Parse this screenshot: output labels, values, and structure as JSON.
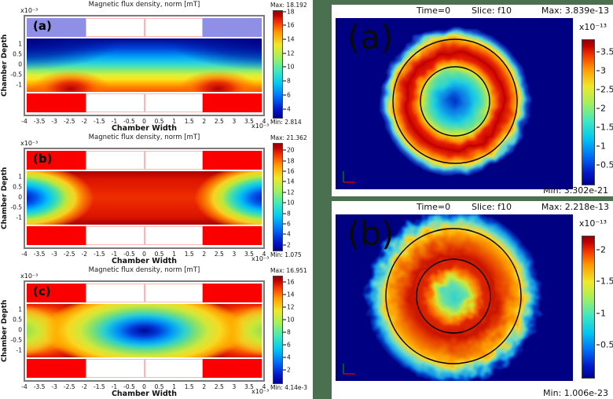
{
  "colors": {
    "background_green": "#4a7050",
    "plot_navy": "#000082",
    "magnet_red": "#fb0000",
    "magnet_blue": "#8f8fe6",
    "pink_outline": "#ffb4b4",
    "colormap": "jet"
  },
  "left_panels": [
    {
      "label": "(a)",
      "title": "Magnetic flux density, norm [mT]",
      "x_label": "Chamber Width",
      "y_label": "Chamber Depth",
      "x_scale": "x10⁻³",
      "y_scale": "x10⁻³",
      "x_ticks": [
        -4,
        -3.5,
        -3,
        -2.5,
        -2,
        -1.5,
        -1,
        -0.5,
        0,
        0.5,
        1,
        1.5,
        2,
        2.5,
        3,
        3.5,
        4
      ],
      "y_ticks": [
        1,
        0.5,
        0,
        -0.5,
        -1
      ],
      "colorbar": {
        "max_label": "Max: 18.192",
        "min_label": "Min: 2.814",
        "vmin": 2.814,
        "vmax": 18.192,
        "ticks": [
          18,
          16,
          14,
          12,
          10,
          8,
          6,
          4
        ]
      },
      "magnet_top_color": "#8f8fe6",
      "magnet_bottom_color": "#fb0000"
    },
    {
      "label": "(b)",
      "title": "Magnetic flux density, norm [mT]",
      "x_label": "Chamber Width",
      "y_label": "Chamber Depth",
      "x_scale": "x10⁻³",
      "y_scale": "x10⁻³",
      "x_ticks": [
        -4,
        -3.5,
        -3,
        -2.5,
        -2,
        -1.5,
        -1,
        -0.5,
        0,
        0.5,
        1,
        1.5,
        2,
        2.5,
        3,
        3.5,
        4
      ],
      "y_ticks": [
        1,
        0.5,
        0,
        -0.5,
        -1
      ],
      "colorbar": {
        "max_label": "Max: 21.362",
        "min_label": "Min: 1.075",
        "vmin": 1.075,
        "vmax": 21.362,
        "ticks": [
          20,
          18,
          16,
          14,
          12,
          10,
          8,
          6,
          4,
          2
        ]
      },
      "magnet_top_color": "#fb0000",
      "magnet_bottom_color": "#fb0000"
    },
    {
      "label": "(c)",
      "title": "Magnetic flux density, norm [mT]",
      "x_label": "Chamber Width",
      "y_label": "Chamber Depth",
      "x_scale": "x10⁻³",
      "y_scale": "x10⁻³",
      "x_ticks": [
        -4,
        -3.5,
        -3,
        -2.5,
        -2,
        -1.5,
        -1,
        -0.5,
        0,
        0.5,
        1,
        1.5,
        2,
        2.5,
        3,
        3.5,
        4
      ],
      "y_ticks": [
        1,
        0.5,
        0,
        -0.5,
        -1
      ],
      "colorbar": {
        "max_label": "Max: 16.951",
        "min_label": "Min: 4.14e-3",
        "vmin": 0.00414,
        "vmax": 16.951,
        "ticks": [
          16,
          14,
          12,
          10,
          8,
          6,
          4,
          2
        ]
      },
      "magnet_top_color": "#fb0000",
      "magnet_bottom_color": "#fb0000"
    }
  ],
  "right_panels": [
    {
      "label": "(a)",
      "time_label": "Time=0",
      "slice_label": "Slice: f10",
      "max_label": "Max: 3.839e-13",
      "min_label": "Min: 3.302e-21",
      "scale_label": "x10⁻¹³",
      "colorbar": {
        "vmin": 0,
        "vmax": 3.839,
        "ticks": [
          3.5,
          3,
          2.5,
          2,
          1.5,
          1,
          0.5
        ]
      }
    },
    {
      "label": "(b)",
      "time_label": "Time=0",
      "slice_label": "Slice: f10",
      "max_label": "Max: 2.218e-13",
      "min_label": "Min: 1.006e-23",
      "scale_label": "x10⁻¹³",
      "colorbar": {
        "vmin": 0,
        "vmax": 2.218,
        "ticks": [
          2,
          1.5,
          1,
          0.5
        ]
      }
    }
  ],
  "chart_data": [
    {
      "type": "heatmap",
      "panel": "left-a",
      "title": "Magnetic flux density, norm [mT]",
      "xlabel": "Chamber Width",
      "ylabel": "Chamber Depth",
      "x_range": [
        -0.004,
        0.004
      ],
      "y_range": [
        -0.0012,
        0.0012
      ],
      "vmin": 2.814,
      "vmax": 18.192,
      "colormap": "jet",
      "colorbar_ticks": [
        4,
        6,
        8,
        10,
        12,
        14,
        16,
        18
      ],
      "pattern": "flux rises from ~3 mT (dark blue) at the chamber top to ~18 mT near the bottom wall, with red hotspots near x=-2.5e-3 and x=+2.5e-3 at the bottom",
      "magnets": "blue blocks at top corners (x -4..-2 and 2..4), red blocks at bottom corners"
    },
    {
      "type": "heatmap",
      "panel": "left-b",
      "title": "Magnetic flux density, norm [mT]",
      "xlabel": "Chamber Width",
      "ylabel": "Chamber Depth",
      "x_range": [
        -0.004,
        0.004
      ],
      "y_range": [
        -0.0012,
        0.0012
      ],
      "vmin": 1.075,
      "vmax": 21.362,
      "colormap": "jet",
      "colorbar_ticks": [
        2,
        4,
        6,
        8,
        10,
        12,
        14,
        16,
        18,
        20
      ],
      "pattern": "broad ~20 mT red plateau across the chamber center dropping to ~1-2 mT (dark blue) lens-shaped pockets at the left and right walls",
      "magnets": "red blocks at all four corners"
    },
    {
      "type": "heatmap",
      "panel": "left-c",
      "title": "Magnetic flux density, norm [mT]",
      "xlabel": "Chamber Width",
      "ylabel": "Chamber Depth",
      "x_range": [
        -0.004,
        0.004
      ],
      "y_range": [
        -0.0012,
        0.0012
      ],
      "vmin": 0.00414,
      "vmax": 16.951,
      "colormap": "jet",
      "colorbar_ticks": [
        2,
        4,
        6,
        8,
        10,
        12,
        14,
        16
      ],
      "pattern": "near-zero (dark blue) elliptical minimum at the chamber center, rising through cyan/yellow to ~14-17 mT red along top and bottom walls with green pockets at mid-height side walls",
      "magnets": "red blocks at all four corners"
    },
    {
      "type": "heatmap",
      "panel": "right-a",
      "title": "Time=0  Slice: f10",
      "vmin": 3.302e-21,
      "vmax": 3.839e-13,
      "scale": "x10⁻¹³",
      "colormap": "jet",
      "colorbar_ticks": [
        0.5,
        1,
        1.5,
        2,
        2.5,
        3,
        3.5
      ],
      "pattern": "high-concentration red annulus confined between two black circle outlines (annular channel), blue low value in the core and dark-blue background"
    },
    {
      "type": "heatmap",
      "panel": "right-b",
      "title": "Time=0  Slice: f10",
      "vmin": 1.006e-23,
      "vmax": 2.218e-13,
      "scale": "x10⁻¹³",
      "colormap": "jet",
      "colorbar_ticks": [
        0.5,
        1,
        1.5,
        2
      ],
      "pattern": "mottled red/orange disc spreading across both black circles with a cyan core and a cyan halo diffusing into the dark-blue background"
    }
  ]
}
